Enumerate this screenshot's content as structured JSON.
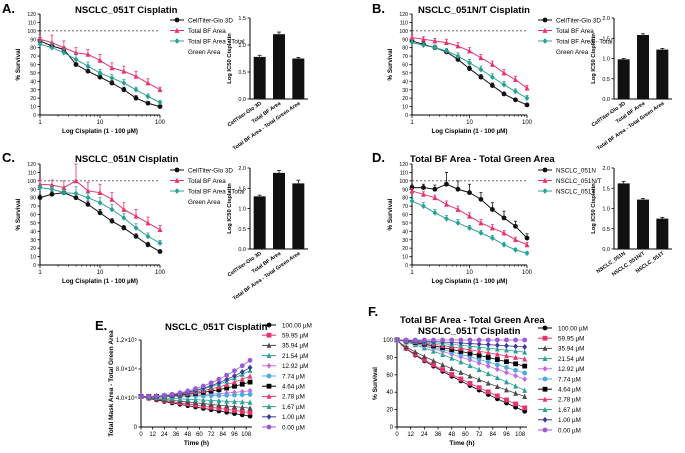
{
  "figure": {
    "panels": [
      {
        "letter": "A.",
        "title": "NSCLC_051T Cisplatin"
      },
      {
        "letter": "B.",
        "title": "NSCLC_051N/T Cisplatin"
      },
      {
        "letter": "C.",
        "title": "NSCLC_051N Cisplatin"
      },
      {
        "letter": "D.",
        "title": "Total BF Area - Total Green Area"
      },
      {
        "letter": "E.",
        "title": "NSCLC_051T Cisplatin"
      },
      {
        "letter": "F.",
        "title": "Total BF Area - Total Green Area",
        "title2": "NSCLC_051T Cisplatin"
      }
    ]
  },
  "colors": {
    "black": "#111111",
    "pink": "#e8336b",
    "teal": "#2aa198",
    "s100": "#000000",
    "s5995": "#e8336b",
    "s3594": "#4a4a4a",
    "s2154": "#2aa198",
    "s1292": "#c46ad8",
    "s774": "#4fa8e0",
    "s464": "#000000",
    "s278": "#e8336b",
    "s167": "#2aa198",
    "s100b": "#3a3a9c",
    "s000": "#9b59d6"
  },
  "chart_data": [
    {
      "panel": "A",
      "type": "line",
      "xscale": "log",
      "xlabel": "Log Cisplatin (1 - 100 µM)",
      "ylabel": "% Survival",
      "xticks": [
        "1",
        "10",
        "100"
      ],
      "yticks": [
        "0",
        "10",
        "20",
        "30",
        "40",
        "50",
        "60",
        "70",
        "80",
        "90",
        "100",
        "110",
        "120"
      ],
      "ylim": [
        0,
        120
      ],
      "reference_line": 100,
      "legend": [
        "CellTiter-Glo 3D",
        "Total BF Area",
        "Total BF Area - Total",
        "Green Area"
      ],
      "series": [
        {
          "name": "CellTiter-Glo 3D",
          "color": "black",
          "marker": "circle",
          "x": [
            1,
            1.58,
            2.5,
            3.98,
            6.3,
            10,
            15.8,
            25,
            39.8,
            63,
            100
          ],
          "y": [
            88,
            82,
            78,
            60,
            52,
            45,
            38,
            30,
            20,
            14,
            10
          ],
          "err": [
            4,
            4,
            3,
            5,
            4,
            3,
            3,
            3,
            3,
            2,
            2
          ]
        },
        {
          "name": "Total BF Area",
          "color": "pink",
          "marker": "triangle",
          "x": [
            1,
            1.58,
            2.5,
            3.98,
            6.3,
            10,
            15.8,
            25,
            39.8,
            63,
            100
          ],
          "y": [
            90,
            86,
            80,
            74,
            72,
            65,
            56,
            52,
            46,
            38,
            30
          ],
          "err": [
            5,
            9,
            8,
            6,
            6,
            7,
            6,
            6,
            6,
            5,
            3
          ]
        },
        {
          "name": "Total BF Area - Total Green Area",
          "color": "teal",
          "marker": "diamond",
          "x": [
            1,
            1.58,
            2.5,
            3.98,
            6.3,
            10,
            15.8,
            25,
            39.8,
            63,
            100
          ],
          "y": [
            84,
            80,
            74,
            66,
            58,
            50,
            44,
            38,
            30,
            22,
            15
          ],
          "err": [
            4,
            6,
            5,
            6,
            5,
            4,
            4,
            4,
            3,
            3,
            2
          ]
        }
      ]
    },
    {
      "panel": "A-bar",
      "type": "bar",
      "ylabel": "Log IC50 Cisplatin",
      "categories": [
        "CellTiter-Glo 3D",
        "Total BF Area",
        "Total BF Area - Total Green Area"
      ],
      "values": [
        0.78,
        1.2,
        0.75
      ],
      "err": [
        0.03,
        0.04,
        0.02
      ],
      "ylim": [
        0,
        1.5
      ],
      "yticks": [
        "0.0",
        "0.5",
        "1.0",
        "1.5"
      ]
    },
    {
      "panel": "B",
      "type": "line",
      "xscale": "log",
      "xlabel": "Log Cisplatin (1 - 100 µM)",
      "ylabel": "% Survival",
      "xticks": [
        "1",
        "10",
        "100"
      ],
      "yticks": [
        "0",
        "10",
        "20",
        "30",
        "40",
        "50",
        "60",
        "70",
        "80",
        "90",
        "100",
        "110",
        "120"
      ],
      "ylim": [
        0,
        120
      ],
      "reference_line": 100,
      "legend": [
        "CellTiter-Glo 3D",
        "Total BF Area",
        "Total BF Area - Total",
        "Green Area"
      ],
      "series": [
        {
          "name": "CellTiter-Glo 3D",
          "color": "black",
          "marker": "circle",
          "x": [
            1,
            1.58,
            2.5,
            3.98,
            6.3,
            10,
            15.8,
            25,
            39.8,
            63,
            100
          ],
          "y": [
            88,
            84,
            80,
            75,
            66,
            55,
            45,
            35,
            25,
            18,
            12
          ],
          "err": [
            3,
            3,
            3,
            3,
            3,
            3,
            3,
            3,
            2,
            2,
            2
          ]
        },
        {
          "name": "Total BF Area",
          "color": "pink",
          "marker": "triangle",
          "x": [
            1,
            1.58,
            2.5,
            3.98,
            6.3,
            10,
            15.8,
            25,
            39.8,
            63,
            100
          ],
          "y": [
            92,
            90,
            88,
            86,
            82,
            76,
            68,
            60,
            50,
            42,
            32
          ],
          "err": [
            3,
            3,
            3,
            4,
            4,
            4,
            4,
            4,
            4,
            4,
            3
          ]
        },
        {
          "name": "Total BF Area - Total Green Area",
          "color": "teal",
          "marker": "diamond",
          "x": [
            1,
            1.58,
            2.5,
            3.98,
            6.3,
            10,
            15.8,
            25,
            39.8,
            63,
            100
          ],
          "y": [
            86,
            83,
            80,
            76,
            70,
            62,
            54,
            45,
            36,
            28,
            20
          ],
          "err": [
            3,
            3,
            3,
            3,
            4,
            4,
            4,
            4,
            4,
            3,
            3
          ]
        }
      ]
    },
    {
      "panel": "B-bar",
      "type": "bar",
      "ylabel": "Log IC50 Cisplatin",
      "categories": [
        "CellTiter-Glo 3D",
        "Total BF Area",
        "Total BF Area - Total Green Area"
      ],
      "values": [
        0.98,
        1.58,
        1.22
      ],
      "err": [
        0.02,
        0.03,
        0.03
      ],
      "ylim": [
        0,
        2.0
      ],
      "yticks": [
        "0.0",
        "0.5",
        "1.0",
        "1.5",
        "2.0"
      ]
    },
    {
      "panel": "C",
      "type": "line",
      "xscale": "log",
      "xlabel": "Log Cisplatin (1 - 100 µM)",
      "ylabel": "% Survival",
      "xticks": [
        "1",
        "10",
        "100"
      ],
      "yticks": [
        "0",
        "10",
        "20",
        "30",
        "40",
        "50",
        "60",
        "70",
        "80",
        "90",
        "100",
        "110",
        "120"
      ],
      "ylim": [
        0,
        120
      ],
      "reference_line": 100,
      "legend": [
        "CellTiter-Glo 3D",
        "Total BF Area",
        "Total BF Area - Total",
        "Green Area"
      ],
      "series": [
        {
          "name": "CellTiter-Glo 3D",
          "color": "black",
          "marker": "circle",
          "x": [
            1,
            1.58,
            2.5,
            3.98,
            6.3,
            10,
            15.8,
            25,
            39.8,
            63,
            100
          ],
          "y": [
            80,
            84,
            86,
            80,
            72,
            62,
            52,
            44,
            34,
            24,
            16
          ],
          "err": [
            3,
            3,
            4,
            4,
            4,
            4,
            3,
            3,
            3,
            3,
            2
          ]
        },
        {
          "name": "Total BF Area",
          "color": "pink",
          "marker": "triangle",
          "x": [
            1,
            1.58,
            2.5,
            3.98,
            6.3,
            10,
            15.8,
            25,
            39.8,
            63,
            100
          ],
          "y": [
            96,
            95,
            92,
            100,
            88,
            86,
            78,
            66,
            58,
            50,
            42
          ],
          "err": [
            6,
            6,
            8,
            20,
            10,
            10,
            8,
            8,
            8,
            7,
            5
          ]
        },
        {
          "name": "Total BF Area - Total Green Area",
          "color": "teal",
          "marker": "diamond",
          "x": [
            1,
            1.58,
            2.5,
            3.98,
            6.3,
            10,
            15.8,
            25,
            39.8,
            63,
            100
          ],
          "y": [
            92,
            90,
            86,
            85,
            80,
            74,
            66,
            56,
            44,
            34,
            26
          ],
          "err": [
            4,
            4,
            6,
            8,
            6,
            6,
            6,
            5,
            5,
            4,
            3
          ]
        }
      ]
    },
    {
      "panel": "C-bar",
      "type": "bar",
      "ylabel": "Log IC50 Cisplatin",
      "categories": [
        "CellTiter-Glo 3D",
        "Total BF Area",
        "Total BF Area - Total Green Area"
      ],
      "values": [
        1.3,
        1.88,
        1.62
      ],
      "err": [
        0.03,
        0.06,
        0.08
      ],
      "ylim": [
        0,
        2.0
      ],
      "yticks": [
        "0.0",
        "0.5",
        "1.0",
        "1.5",
        "2.0"
      ]
    },
    {
      "panel": "D",
      "type": "line",
      "xscale": "log",
      "xlabel": "Log Cisplatin (1 - 100 µM)",
      "ylabel": "% Survival",
      "xticks": [
        "1",
        "10",
        "100"
      ],
      "yticks": [
        "0",
        "10",
        "20",
        "30",
        "40",
        "50",
        "60",
        "70",
        "80",
        "90",
        "100",
        "110",
        "120"
      ],
      "ylim": [
        0,
        120
      ],
      "reference_line": 100,
      "legend": [
        "NSCLC_051N",
        "NSCLC_051N/T",
        "NSCLC_051T"
      ],
      "series": [
        {
          "name": "NSCLC_051N",
          "color": "black",
          "marker": "circle",
          "x": [
            1,
            1.58,
            2.5,
            3.98,
            6.3,
            10,
            15.8,
            25,
            39.8,
            63,
            100
          ],
          "y": [
            92,
            92,
            90,
            96,
            90,
            86,
            78,
            66,
            56,
            46,
            32
          ],
          "err": [
            3,
            4,
            5,
            14,
            10,
            10,
            8,
            8,
            8,
            6,
            5
          ]
        },
        {
          "name": "NSCLC_051N/T",
          "color": "pink",
          "marker": "triangle",
          "x": [
            1,
            1.58,
            2.5,
            3.98,
            6.3,
            10,
            15.8,
            25,
            39.8,
            63,
            100
          ],
          "y": [
            88,
            84,
            80,
            72,
            66,
            58,
            50,
            44,
            38,
            30,
            24
          ],
          "err": [
            3,
            3,
            3,
            4,
            4,
            4,
            4,
            4,
            3,
            3,
            3
          ]
        },
        {
          "name": "NSCLC_051T",
          "color": "teal",
          "marker": "diamond",
          "x": [
            1,
            1.58,
            2.5,
            3.98,
            6.3,
            10,
            15.8,
            25,
            39.8,
            63,
            100
          ],
          "y": [
            76,
            70,
            62,
            55,
            50,
            44,
            38,
            32,
            24,
            18,
            14
          ],
          "err": [
            3,
            4,
            4,
            4,
            4,
            3,
            3,
            3,
            3,
            2,
            2
          ]
        }
      ]
    },
    {
      "panel": "D-bar",
      "type": "bar",
      "ylabel": "Log IC50 Cisplatin",
      "categories": [
        "NSCLC_051N",
        "NSCLC_051N/T",
        "NSCLC_051T"
      ],
      "values": [
        1.62,
        1.22,
        0.75
      ],
      "err": [
        0.05,
        0.03,
        0.03
      ],
      "ylim": [
        0,
        2.0
      ],
      "yticks": [
        "0.0",
        "0.5",
        "1.0",
        "1.5",
        "2.0"
      ]
    },
    {
      "panel": "E",
      "type": "line",
      "xlabel": "Time (h)",
      "ylabel": "Total Mask Area - Total Green Area",
      "xticks": [
        "0",
        "12",
        "24",
        "36",
        "48",
        "60",
        "72",
        "84",
        "96",
        "108"
      ],
      "yticks": [
        "0",
        "4.0×10⁴",
        "8.0×10⁴",
        "1.2×10⁵"
      ],
      "ylim": [
        0,
        120000
      ],
      "xlim": [
        0,
        114
      ],
      "legend": [
        "100.00 µM",
        "59.95 µM",
        "35.94 µM",
        "21.54 µM",
        "12.92 µM",
        "7.74 µM",
        "4.64 µM",
        "2.78 µM",
        "1.67 µM",
        "1.00 µM",
        "0.00 µM"
      ],
      "series": [
        {
          "name": "100.00 µM",
          "color": "s100",
          "marker": "circle",
          "start": 42000,
          "end": 15000
        },
        {
          "name": "59.95 µM",
          "color": "s5995",
          "marker": "square",
          "start": 42000,
          "end": 20000
        },
        {
          "name": "35.94 µM",
          "color": "s3594",
          "marker": "triangle",
          "start": 42000,
          "end": 26000
        },
        {
          "name": "21.54 µM",
          "color": "s2154",
          "marker": "triangle",
          "start": 42000,
          "end": 34000
        },
        {
          "name": "12.92 µM",
          "color": "s1292",
          "marker": "diamond",
          "start": 42000,
          "end": 50000
        },
        {
          "name": "7.74 µM",
          "color": "s774",
          "marker": "circle",
          "start": 42000,
          "end": 45000
        },
        {
          "name": "4.64 µM",
          "color": "s464",
          "marker": "square",
          "start": 42000,
          "end": 62000
        },
        {
          "name": "2.78 µM",
          "color": "s278",
          "marker": "triangle",
          "start": 42000,
          "end": 70000
        },
        {
          "name": "1.67 µM",
          "color": "s167",
          "marker": "triangle",
          "start": 42000,
          "end": 78000
        },
        {
          "name": "1.00 µM",
          "color": "s100b",
          "marker": "diamond",
          "start": 42000,
          "end": 82000
        },
        {
          "name": "0.00 µM",
          "color": "s000",
          "marker": "circle",
          "start": 42000,
          "end": 92000
        }
      ]
    },
    {
      "panel": "F",
      "type": "line",
      "xlabel": "Time (h)",
      "ylabel": "% Survival",
      "xticks": [
        "0",
        "12",
        "24",
        "36",
        "48",
        "60",
        "72",
        "84",
        "96",
        "108"
      ],
      "yticks": [
        "0",
        "20",
        "40",
        "60",
        "80",
        "100"
      ],
      "ylim": [
        0,
        100
      ],
      "xlim": [
        0,
        114
      ],
      "legend": [
        "100.00 µM",
        "59.95 µM",
        "35.94 µM",
        "21.54 µM",
        "12.92 µM",
        "7.74 µM",
        "4.64 µM",
        "2.78 µM",
        "1.67 µM",
        "1.00 µM",
        "0.00 µM"
      ],
      "series": [
        {
          "name": "100.00 µM",
          "color": "s100",
          "marker": "circle",
          "start": 100,
          "end": 18
        },
        {
          "name": "59.95 µM",
          "color": "s5995",
          "marker": "square",
          "start": 100,
          "end": 22
        },
        {
          "name": "35.94 µM",
          "color": "s3594",
          "marker": "triangle",
          "start": 100,
          "end": 35
        },
        {
          "name": "21.54 µM",
          "color": "s2154",
          "marker": "triangle",
          "start": 100,
          "end": 42
        },
        {
          "name": "12.92 µM",
          "color": "s1292",
          "marker": "diamond",
          "start": 100,
          "end": 55
        },
        {
          "name": "7.74 µM",
          "color": "s774",
          "marker": "circle",
          "start": 100,
          "end": 62
        },
        {
          "name": "4.64 µM",
          "color": "s464",
          "marker": "square",
          "start": 100,
          "end": 70
        },
        {
          "name": "2.78 µM",
          "color": "s278",
          "marker": "triangle",
          "start": 100,
          "end": 78
        },
        {
          "name": "1.67 µM",
          "color": "s167",
          "marker": "triangle",
          "start": 100,
          "end": 86
        },
        {
          "name": "1.00 µM",
          "color": "s100b",
          "marker": "diamond",
          "start": 100,
          "end": 92
        },
        {
          "name": "0.00 µM",
          "color": "s000",
          "marker": "circle",
          "start": 100,
          "end": 100
        }
      ]
    }
  ]
}
